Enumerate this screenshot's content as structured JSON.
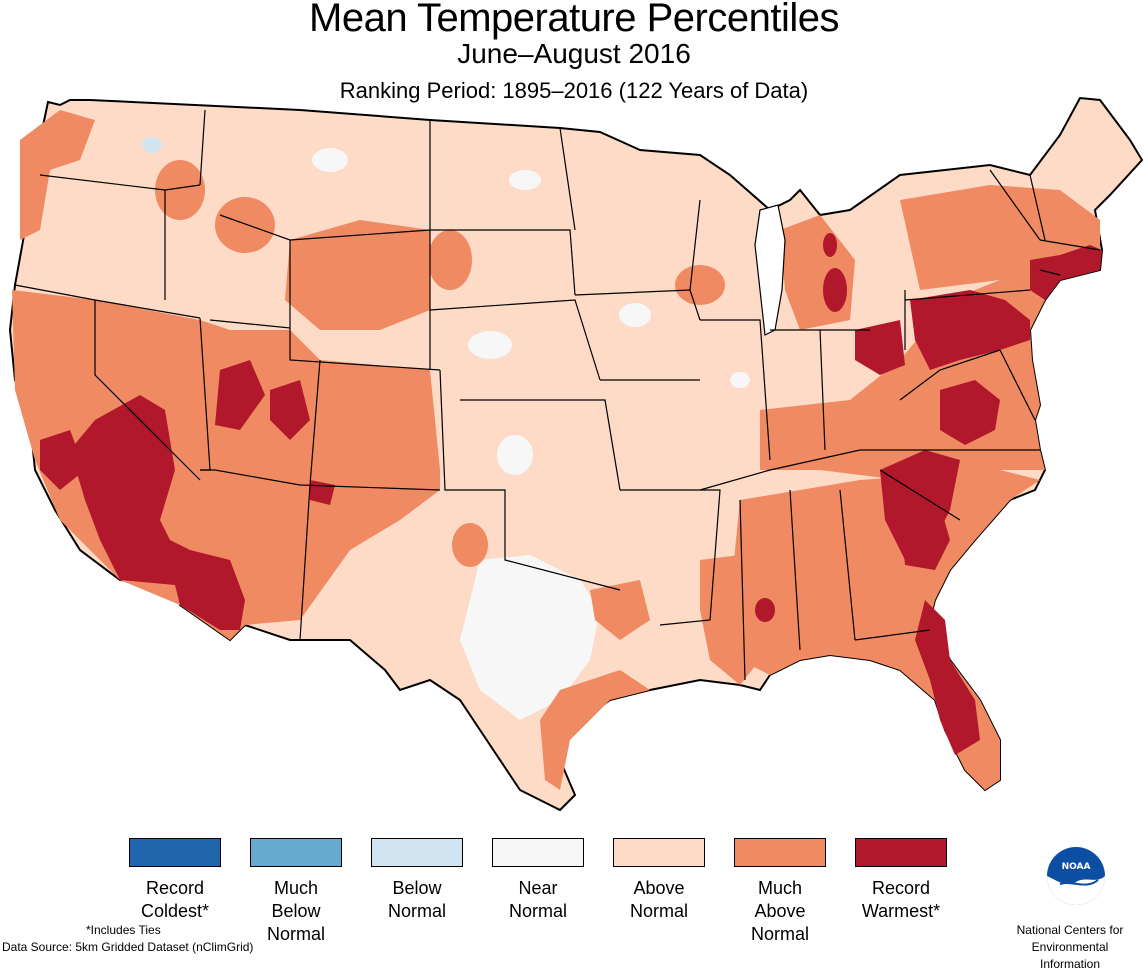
{
  "header": {
    "title": "Mean Temperature Percentiles",
    "subtitle": "June–August 2016",
    "period": "Ranking Period: 1895–2016 (122 Years of Data)"
  },
  "colors": {
    "record_coldest": "#2166ac",
    "much_below": "#67a9cf",
    "below": "#d1e5f0",
    "near": "#f7f7f7",
    "above": "#fddbc7",
    "much_above": "#ef8a62",
    "record_warmest": "#b2182b",
    "state_border": "#000000"
  },
  "legend": [
    {
      "label": "Record\nColdest*",
      "color": "#2166ac"
    },
    {
      "label": "Much\nBelow\nNormal",
      "color": "#67a9cf"
    },
    {
      "label": "Below\nNormal",
      "color": "#d1e5f0"
    },
    {
      "label": "Near\nNormal",
      "color": "#f7f7f7"
    },
    {
      "label": "Above\nNormal",
      "color": "#fddbc7"
    },
    {
      "label": "Much\nAbove\nNormal",
      "color": "#ef8a62"
    },
    {
      "label": "Record\nWarmest*",
      "color": "#b2182b"
    }
  ],
  "footer": {
    "ties_note": "*Includes Ties",
    "data_source": "Data Source: 5km Gridded Dataset (nClimGrid)",
    "agency_line1": "National Centers for",
    "agency_line2": "Environmental Information",
    "logo_text": "NOAA"
  }
}
